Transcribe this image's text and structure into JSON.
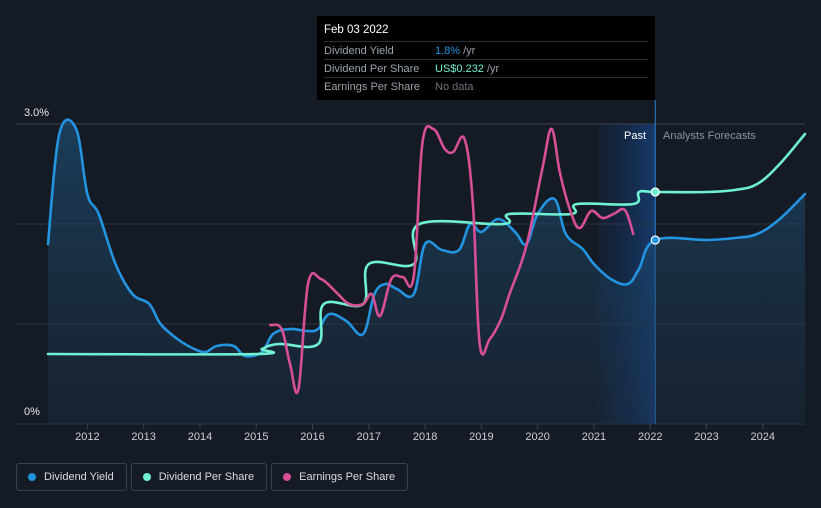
{
  "tooltip": {
    "date": "Feb 03 2022",
    "rows": [
      {
        "label": "Dividend Yield",
        "value": "1.8%",
        "unit": "/yr",
        "color": "#2394df"
      },
      {
        "label": "Dividend Per Share",
        "value": "US$0.232",
        "unit": "/yr",
        "color": "#6ff0d0"
      },
      {
        "label": "Earnings Per Share",
        "value": "No data",
        "unit": "",
        "color": "#6b727c"
      }
    ]
  },
  "labels": {
    "past": "Past",
    "forecast": "Analysts Forecasts"
  },
  "legend": [
    {
      "label": "Dividend Yield",
      "color": "#2394df"
    },
    {
      "label": "Dividend Per Share",
      "color": "#6ff0d0"
    },
    {
      "label": "Earnings Per Share",
      "color": "#d74f96"
    }
  ],
  "chart_data": {
    "type": "line",
    "title": "",
    "y_labels": [
      "3.0%",
      "0%"
    ],
    "ylim": [
      0,
      3.0
    ],
    "xlim": [
      2011.3,
      2024.75
    ],
    "x_ticks": [
      "2012",
      "2013",
      "2014",
      "2015",
      "2016",
      "2017",
      "2018",
      "2019",
      "2020",
      "2021",
      "2022",
      "2023",
      "2024"
    ],
    "past_end": 2022.09,
    "forecast_band_start": 2021.08,
    "series": [
      {
        "name": "Dividend Yield",
        "color": "#2394df",
        "fill": true,
        "marker_x": 2022.09,
        "marker_y": 1.84,
        "points": [
          [
            2011.3,
            1.8
          ],
          [
            2011.5,
            2.9
          ],
          [
            2011.8,
            2.95
          ],
          [
            2012.0,
            2.3
          ],
          [
            2012.2,
            2.1
          ],
          [
            2012.5,
            1.6
          ],
          [
            2012.8,
            1.3
          ],
          [
            2013.1,
            1.2
          ],
          [
            2013.3,
            1.0
          ],
          [
            2013.6,
            0.85
          ],
          [
            2013.9,
            0.75
          ],
          [
            2014.1,
            0.72
          ],
          [
            2014.3,
            0.78
          ],
          [
            2014.6,
            0.78
          ],
          [
            2014.8,
            0.68
          ],
          [
            2015.1,
            0.72
          ],
          [
            2015.3,
            0.9
          ],
          [
            2015.6,
            0.95
          ],
          [
            2015.9,
            0.93
          ],
          [
            2016.1,
            0.95
          ],
          [
            2016.3,
            1.1
          ],
          [
            2016.6,
            1.03
          ],
          [
            2016.9,
            0.9
          ],
          [
            2017.1,
            1.3
          ],
          [
            2017.3,
            1.4
          ],
          [
            2017.5,
            1.35
          ],
          [
            2017.8,
            1.3
          ],
          [
            2018.0,
            1.8
          ],
          [
            2018.3,
            1.74
          ],
          [
            2018.6,
            1.74
          ],
          [
            2018.8,
            2.0
          ],
          [
            2019.0,
            1.92
          ],
          [
            2019.3,
            2.05
          ],
          [
            2019.6,
            1.92
          ],
          [
            2019.8,
            1.8
          ],
          [
            2020.0,
            2.1
          ],
          [
            2020.3,
            2.25
          ],
          [
            2020.5,
            1.9
          ],
          [
            2020.8,
            1.75
          ],
          [
            2021.0,
            1.6
          ],
          [
            2021.3,
            1.45
          ],
          [
            2021.6,
            1.4
          ],
          [
            2021.8,
            1.55
          ],
          [
            2022.09,
            1.84
          ],
          [
            2023.0,
            1.84
          ],
          [
            2023.5,
            1.86
          ],
          [
            2023.9,
            1.9
          ],
          [
            2024.3,
            2.05
          ],
          [
            2024.75,
            2.3
          ]
        ]
      },
      {
        "name": "Dividend Per Share",
        "color": "#6ff0d0",
        "fill": false,
        "marker_x": 2022.09,
        "marker_y": 2.32,
        "points": [
          [
            2011.3,
            0.7
          ],
          [
            2015.0,
            0.7
          ],
          [
            2015.1,
            0.75
          ],
          [
            2015.4,
            0.8
          ],
          [
            2016.1,
            0.8
          ],
          [
            2016.2,
            1.2
          ],
          [
            2016.9,
            1.2
          ],
          [
            2017.0,
            1.6
          ],
          [
            2017.8,
            1.6
          ],
          [
            2017.9,
            2.0
          ],
          [
            2019.4,
            2.0
          ],
          [
            2019.5,
            2.1
          ],
          [
            2020.6,
            2.1
          ],
          [
            2020.7,
            2.2
          ],
          [
            2021.7,
            2.2
          ],
          [
            2021.8,
            2.32
          ],
          [
            2022.09,
            2.32
          ],
          [
            2023.0,
            2.32
          ],
          [
            2023.5,
            2.34
          ],
          [
            2023.9,
            2.4
          ],
          [
            2024.3,
            2.6
          ],
          [
            2024.75,
            2.9
          ]
        ]
      },
      {
        "name": "Earnings Per Share",
        "color": "#d74f96",
        "fill": false,
        "points": [
          [
            2015.25,
            0.99
          ],
          [
            2015.45,
            0.95
          ],
          [
            2015.6,
            0.6
          ],
          [
            2015.75,
            0.35
          ],
          [
            2015.92,
            1.4
          ],
          [
            2016.15,
            1.45
          ],
          [
            2016.45,
            1.3
          ],
          [
            2016.65,
            1.2
          ],
          [
            2016.9,
            1.2
          ],
          [
            2017.05,
            1.3
          ],
          [
            2017.2,
            1.08
          ],
          [
            2017.4,
            1.45
          ],
          [
            2017.6,
            1.47
          ],
          [
            2017.8,
            1.48
          ],
          [
            2017.95,
            2.8
          ],
          [
            2018.15,
            2.95
          ],
          [
            2018.35,
            2.75
          ],
          [
            2018.5,
            2.72
          ],
          [
            2018.7,
            2.85
          ],
          [
            2018.85,
            2.2
          ],
          [
            2018.97,
            0.8
          ],
          [
            2019.15,
            0.85
          ],
          [
            2019.35,
            1.05
          ],
          [
            2019.5,
            1.3
          ],
          [
            2019.7,
            1.6
          ],
          [
            2019.85,
            1.9
          ],
          [
            2020.1,
            2.6
          ],
          [
            2020.25,
            2.95
          ],
          [
            2020.4,
            2.5
          ],
          [
            2020.6,
            2.1
          ],
          [
            2020.75,
            1.96
          ],
          [
            2020.95,
            2.13
          ],
          [
            2021.15,
            2.06
          ],
          [
            2021.35,
            2.1
          ],
          [
            2021.55,
            2.14
          ],
          [
            2021.7,
            1.9
          ]
        ]
      }
    ]
  }
}
